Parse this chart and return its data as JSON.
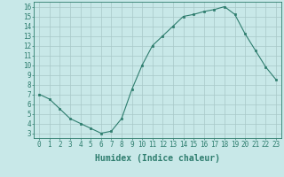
{
  "x": [
    0,
    1,
    2,
    3,
    4,
    5,
    6,
    7,
    8,
    9,
    10,
    11,
    12,
    13,
    14,
    15,
    16,
    17,
    18,
    19,
    20,
    21,
    22,
    23
  ],
  "y": [
    7.0,
    6.5,
    5.5,
    4.5,
    4.0,
    3.5,
    3.0,
    3.2,
    4.5,
    7.5,
    10.0,
    12.0,
    13.0,
    14.0,
    15.0,
    15.2,
    15.5,
    15.7,
    16.0,
    15.2,
    13.2,
    11.5,
    9.8,
    8.5
  ],
  "line_color": "#2e7d6e",
  "marker": "s",
  "marker_size": 2,
  "bg_color": "#c8e8e8",
  "grid_color": "#a8c8c8",
  "xlabel": "Humidex (Indice chaleur)",
  "xlim": [
    -0.5,
    23.5
  ],
  "ylim": [
    2.5,
    16.5
  ],
  "yticks": [
    3,
    4,
    5,
    6,
    7,
    8,
    9,
    10,
    11,
    12,
    13,
    14,
    15,
    16
  ],
  "xticks": [
    0,
    1,
    2,
    3,
    4,
    5,
    6,
    7,
    8,
    9,
    10,
    11,
    12,
    13,
    14,
    15,
    16,
    17,
    18,
    19,
    20,
    21,
    22,
    23
  ],
  "tick_fontsize": 5.5,
  "label_fontsize": 7,
  "linewidth": 0.8,
  "spine_color": "#2e7d6e"
}
